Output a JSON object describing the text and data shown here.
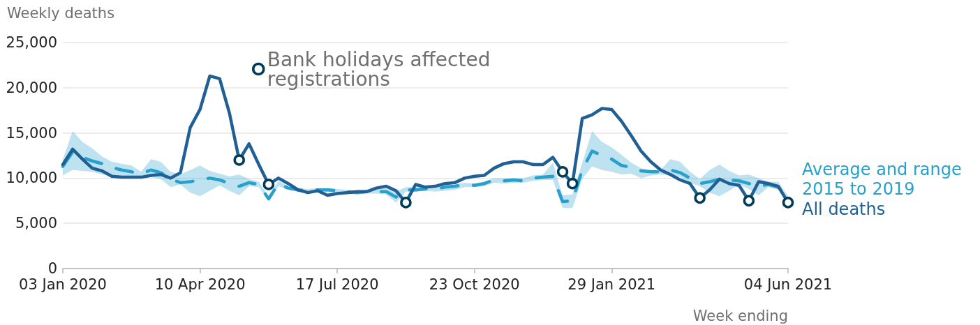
{
  "chart_data": {
    "type": "line",
    "ylabel": "Weekly deaths",
    "xlabel": "Week ending",
    "x": [
      "2020-01-03",
      "2020-01-10",
      "2020-01-17",
      "2020-01-24",
      "2020-01-31",
      "2020-02-07",
      "2020-02-14",
      "2020-02-21",
      "2020-02-28",
      "2020-03-06",
      "2020-03-13",
      "2020-03-20",
      "2020-03-27",
      "2020-04-03",
      "2020-04-10",
      "2020-04-17",
      "2020-04-24",
      "2020-05-01",
      "2020-05-08",
      "2020-05-15",
      "2020-05-22",
      "2020-05-29",
      "2020-06-05",
      "2020-06-12",
      "2020-06-19",
      "2020-06-26",
      "2020-07-03",
      "2020-07-10",
      "2020-07-17",
      "2020-07-24",
      "2020-07-31",
      "2020-08-07",
      "2020-08-14",
      "2020-08-21",
      "2020-08-28",
      "2020-09-04",
      "2020-09-11",
      "2020-09-18",
      "2020-09-25",
      "2020-10-02",
      "2020-10-09",
      "2020-10-16",
      "2020-10-23",
      "2020-10-30",
      "2020-11-06",
      "2020-11-13",
      "2020-11-20",
      "2020-11-27",
      "2020-12-04",
      "2020-12-11",
      "2020-12-18",
      "2020-12-25",
      "2021-01-01",
      "2021-01-08",
      "2021-01-15",
      "2021-01-22",
      "2021-01-29",
      "2021-02-05",
      "2021-02-12",
      "2021-02-19",
      "2021-02-26",
      "2021-03-05",
      "2021-03-12",
      "2021-03-19",
      "2021-03-26",
      "2021-04-02",
      "2021-04-09",
      "2021-04-16",
      "2021-04-23",
      "2021-04-30",
      "2021-05-07",
      "2021-05-14",
      "2021-05-21",
      "2021-05-28",
      "2021-06-04"
    ],
    "series": [
      {
        "name": "Average and range 2015 to 2019",
        "color": "#27a0cc",
        "line_style": "dashed",
        "values": [
          11300,
          12900,
          12300,
          11900,
          11600,
          11200,
          10900,
          10700,
          10500,
          10900,
          10600,
          9900,
          9500,
          9600,
          9800,
          10000,
          9800,
          9400,
          9100,
          9500,
          9300,
          7700,
          9400,
          8900,
          8700,
          8600,
          8700,
          8700,
          8600,
          8500,
          8400,
          8500,
          8500,
          8500,
          7900,
          8700,
          8700,
          8800,
          8800,
          9000,
          9100,
          9300,
          9200,
          9400,
          9800,
          9700,
          9800,
          9700,
          10000,
          10100,
          10200,
          7400,
          7500,
          10900,
          13000,
          12500,
          12100,
          11400,
          11200,
          10800,
          10700,
          10700,
          10900,
          10600,
          10000,
          9400,
          9600,
          9900,
          9800,
          9700,
          9400,
          9100,
          9300,
          9000,
          7800
        ],
        "lower": [
          10300,
          10900,
          10800,
          10700,
          10400,
          10300,
          10100,
          10000,
          10000,
          10100,
          9900,
          9000,
          9300,
          8400,
          8000,
          8600,
          9200,
          8600,
          8100,
          9100,
          9000,
          7500,
          9100,
          8700,
          8500,
          8400,
          8500,
          8500,
          8400,
          8300,
          8200,
          8300,
          8300,
          8200,
          7300,
          8500,
          8500,
          8600,
          8500,
          8600,
          8700,
          9000,
          9000,
          9100,
          9500,
          9400,
          9500,
          9500,
          9700,
          9800,
          9800,
          6700,
          6700,
          9900,
          11300,
          10900,
          10700,
          10400,
          10500,
          10000,
          10300,
          10400,
          10300,
          10100,
          9500,
          9100,
          8400,
          8000,
          8600,
          9300,
          8800,
          8100,
          9000,
          8700,
          7600
        ],
        "upper": [
          12100,
          15200,
          14000,
          13300,
          12400,
          11800,
          11600,
          11400,
          10700,
          12100,
          11800,
          10700,
          10400,
          10900,
          11400,
          10800,
          10500,
          10200,
          10400,
          9900,
          9600,
          8000,
          9700,
          9100,
          8900,
          8800,
          8900,
          8900,
          8800,
          8700,
          8600,
          8700,
          8800,
          8900,
          8500,
          9000,
          9000,
          9000,
          9200,
          9200,
          9300,
          9500,
          9400,
          9600,
          10000,
          10000,
          10000,
          10000,
          10300,
          10400,
          11700,
          8100,
          8200,
          11700,
          15200,
          14000,
          13400,
          12600,
          11700,
          11100,
          10900,
          10900,
          12100,
          11800,
          10700,
          9900,
          10900,
          11500,
          10800,
          10300,
          10400,
          10000,
          9600,
          9600,
          8000
        ]
      },
      {
        "name": "All deaths",
        "color": "#206095",
        "values": [
          11500,
          13200,
          12100,
          11100,
          10800,
          10200,
          10100,
          10100,
          10100,
          10300,
          10400,
          10000,
          10600,
          15600,
          17600,
          21300,
          21000,
          17200,
          12000,
          13800,
          11500,
          9300,
          10000,
          9400,
          8700,
          8400,
          8600,
          8100,
          8300,
          8400,
          8500,
          8500,
          8900,
          9100,
          8600,
          7300,
          9300,
          9000,
          9100,
          9400,
          9500,
          10000,
          10200,
          10300,
          11100,
          11600,
          11800,
          11800,
          11500,
          11500,
          12300,
          10700,
          9400,
          16600,
          17000,
          17700,
          17600,
          16300,
          14700,
          13000,
          11800,
          10900,
          10400,
          9800,
          9400,
          7800,
          8700,
          9900,
          9400,
          9200,
          7500,
          9600,
          9400,
          9100,
          7300
        ]
      },
      {
        "type": "scatter",
        "name": "Bank holidays affected registrations",
        "color": "#003c57",
        "marker": "circle",
        "x": [
          "2020-05-08",
          "2020-05-29",
          "2020-09-04",
          "2020-12-25",
          "2021-01-01",
          "2021-04-02",
          "2021-05-07",
          "2021-06-04"
        ],
        "values": [
          12000,
          9300,
          7300,
          10700,
          9400,
          7800,
          7500,
          7300
        ]
      }
    ],
    "xlim": [
      "2020-01-03",
      "2021-06-04"
    ],
    "xticks": [
      {
        "value": "2020-01-03",
        "label": "03 Jan 2020"
      },
      {
        "value": "2020-04-10",
        "label": "10 Apr 2020"
      },
      {
        "value": "2020-07-17",
        "label": "17 Jul 2020"
      },
      {
        "value": "2020-10-23",
        "label": "23 Oct 2020"
      },
      {
        "value": "2021-01-29",
        "label": "29 Jan 2021"
      },
      {
        "value": "2021-06-04",
        "label": "04 Jun 2021"
      }
    ],
    "ylim": [
      0,
      25000
    ],
    "yticks": [
      0,
      {
        "value": 5000,
        "label": "5,000"
      },
      {
        "value": 10000,
        "label": "10,000"
      },
      {
        "value": 15000,
        "label": "15,000"
      },
      {
        "value": 20000,
        "label": "20,000"
      },
      {
        "value": 25000,
        "label": "25,000"
      }
    ],
    "grid": "y",
    "legend": "top",
    "marker": "none",
    "line_style": "solid"
  }
}
